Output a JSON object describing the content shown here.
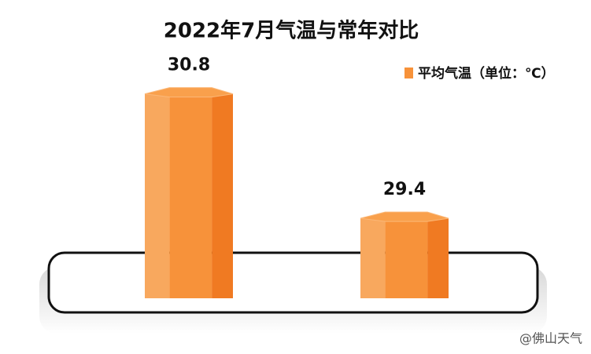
{
  "chart_data": {
    "type": "bar",
    "title": "2022年7月气温与常年对比",
    "categories": [
      null,
      null
    ],
    "series": [
      {
        "name": "平均气温（单位：℃）",
        "color": "#f7923a",
        "values": [
          30.8,
          29.4
        ]
      }
    ],
    "ylim": [
      28.5,
      31.0
    ],
    "legend": "top-right",
    "watermark": "@佛山天气"
  }
}
